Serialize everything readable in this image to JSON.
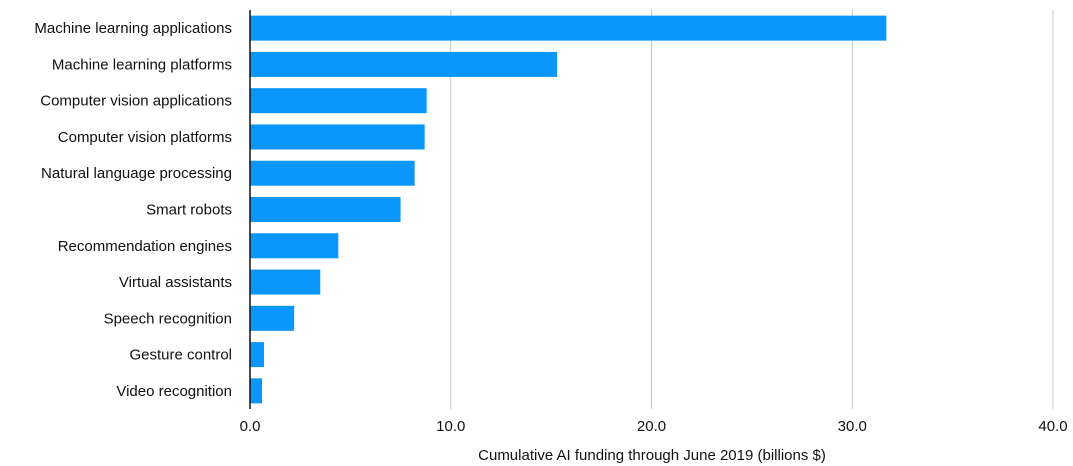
{
  "chart_data": {
    "type": "bar",
    "orientation": "horizontal",
    "categories": [
      "Machine learning applications",
      "Machine learning platforms",
      "Computer vision applications",
      "Computer vision platforms",
      "Natural language processing",
      "Smart robots",
      "Recommendation engines",
      "Virtual assistants",
      "Speech recognition",
      "Gesture control",
      "Video recognition"
    ],
    "values": [
      31.7,
      15.3,
      8.8,
      8.7,
      8.2,
      7.5,
      4.4,
      3.5,
      2.2,
      0.7,
      0.6
    ],
    "xlabel": "Cumulative AI funding through June 2019 (billions $)",
    "ylabel": "",
    "xlim": [
      0,
      40
    ],
    "xticks": [
      "0.0",
      "10.0",
      "20.0",
      "30.0",
      "40.0"
    ],
    "grid": "vertical",
    "legend": "none",
    "colors": {
      "bar": "#0a96fa",
      "grid": "#c8c8c8",
      "axis": "#111111"
    }
  }
}
